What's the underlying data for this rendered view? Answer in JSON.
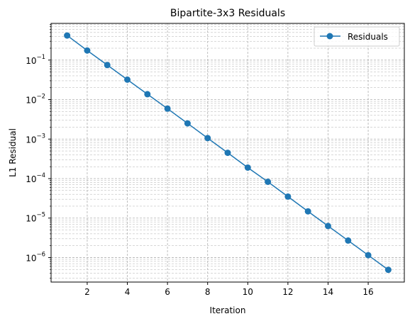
{
  "chart_data": {
    "type": "line",
    "title": "Bipartite-3x3 Residuals",
    "xlabel": "Iteration",
    "ylabel": "L1 Residual",
    "x": [
      1,
      2,
      3,
      4,
      5,
      6,
      7,
      8,
      9,
      10,
      11,
      12,
      13,
      14,
      15,
      16,
      17
    ],
    "series": [
      {
        "name": "Residuals",
        "color": "#1f77b4",
        "marker": "circle",
        "values": [
          0.42,
          0.175,
          0.075,
          0.032,
          0.0137,
          0.0059,
          0.0025,
          0.00106,
          0.00045,
          0.00019,
          8.3e-05,
          3.5e-05,
          1.48e-05,
          6.3e-06,
          2.7e-06,
          1.15e-06,
          4.9e-07
        ]
      }
    ],
    "xlim": [
      0.2,
      17.8
    ],
    "ylim": [
      2.4e-07,
      0.85
    ],
    "yscale": "log",
    "xticks": [
      2,
      4,
      6,
      8,
      10,
      12,
      14,
      16
    ],
    "xtick_labels": [
      "2",
      "4",
      "6",
      "8",
      "10",
      "12",
      "14",
      "16"
    ],
    "ytick_exponents": [
      -6,
      -5,
      -4,
      -3,
      -2,
      -1
    ],
    "grid": true,
    "grid_minor": true,
    "legend_position": "top-right"
  }
}
